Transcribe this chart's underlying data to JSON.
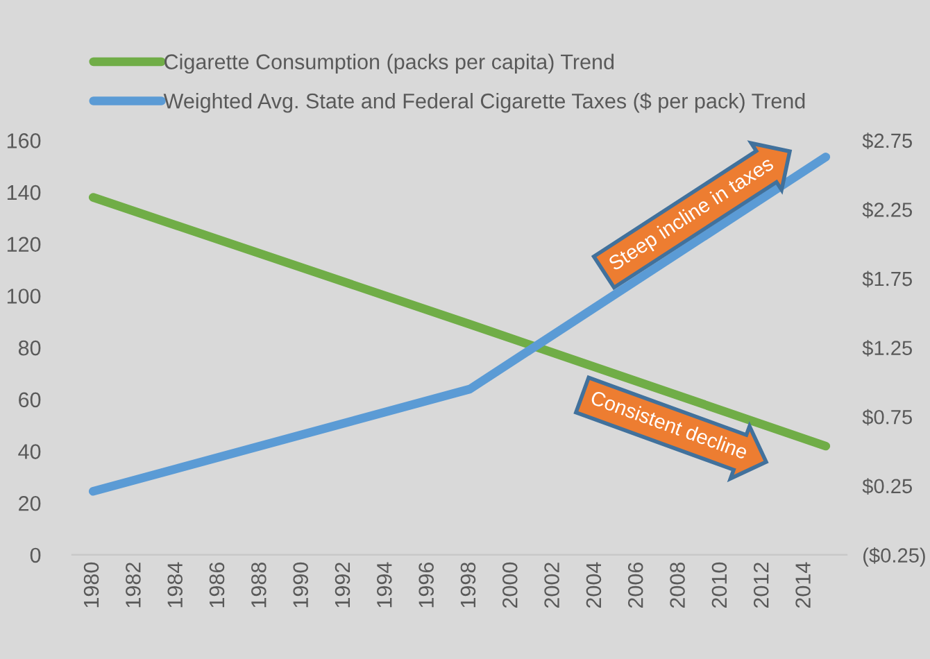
{
  "chart_data": {
    "type": "line",
    "x": [
      1980,
      1998,
      2015
    ],
    "series": [
      {
        "name": "Cigarette Consumption (packs per capita) Trend",
        "color": "#70ad47",
        "values": [
          138,
          89,
          42
        ]
      },
      {
        "name": "Weighted Avg. State and Federal Cigarette Taxes ($ per pack) Trend",
        "color": "#5b9bd5",
        "values": [
          0.21,
          0.95,
          2.63
        ],
        "axis": "y2"
      }
    ],
    "xlim": [
      1979,
      2016
    ],
    "xticks": [
      1980,
      1982,
      1984,
      1986,
      1988,
      1990,
      1992,
      1994,
      1996,
      1998,
      2000,
      2002,
      2004,
      2006,
      2008,
      2010,
      2012,
      2014
    ],
    "ylim": [
      0,
      160
    ],
    "yticks": [
      0,
      20,
      40,
      60,
      80,
      100,
      120,
      140,
      160
    ],
    "y2lim": [
      -0.25,
      2.75
    ],
    "y2ticks": [
      {
        "value": -0.25,
        "label": "($0.25)"
      },
      {
        "value": 0.25,
        "label": "$0.25"
      },
      {
        "value": 0.75,
        "label": "$0.75"
      },
      {
        "value": 1.25,
        "label": "$1.25"
      },
      {
        "value": 1.75,
        "label": "$1.75"
      },
      {
        "value": 2.25,
        "label": "$2.25"
      },
      {
        "value": 2.75,
        "label": "$2.75"
      }
    ],
    "annotations": [
      "Steep incline in taxes",
      "Consistent decline"
    ],
    "legend": "top",
    "grid": false,
    "marker": "none",
    "line_style": "solid"
  }
}
